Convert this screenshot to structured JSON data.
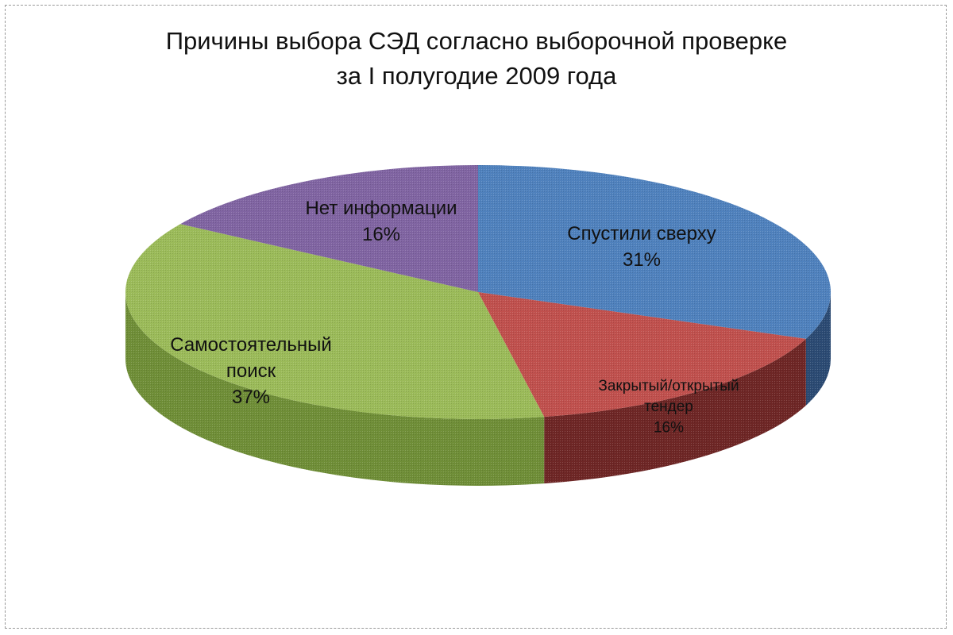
{
  "chart_data": {
    "type": "pie",
    "title_lines": [
      "Причины выбора СЭД согласно выборочной проверке",
      "за I полугодие 2009 года"
    ],
    "slices": [
      {
        "label_lines": [
          "Спустили сверху"
        ],
        "percent_label": "31%",
        "value": 31,
        "color": "#4f81bd",
        "side_color": "#2b4a73"
      },
      {
        "label_lines": [
          "Закрытый/открытый",
          "тендер"
        ],
        "percent_label": "16%",
        "value": 16,
        "color": "#c0504d",
        "side_color": "#6e2625"
      },
      {
        "label_lines": [
          "Самостоятельный",
          "поиск"
        ],
        "percent_label": "37%",
        "value": 37,
        "color": "#9bbb59",
        "side_color": "#6f8e37"
      },
      {
        "label_lines": [
          "Нет информации"
        ],
        "percent_label": "16%",
        "value": 16,
        "color": "#8064a2",
        "side_color": "#54406f"
      }
    ],
    "style": "3d-pie",
    "legend": "none"
  }
}
